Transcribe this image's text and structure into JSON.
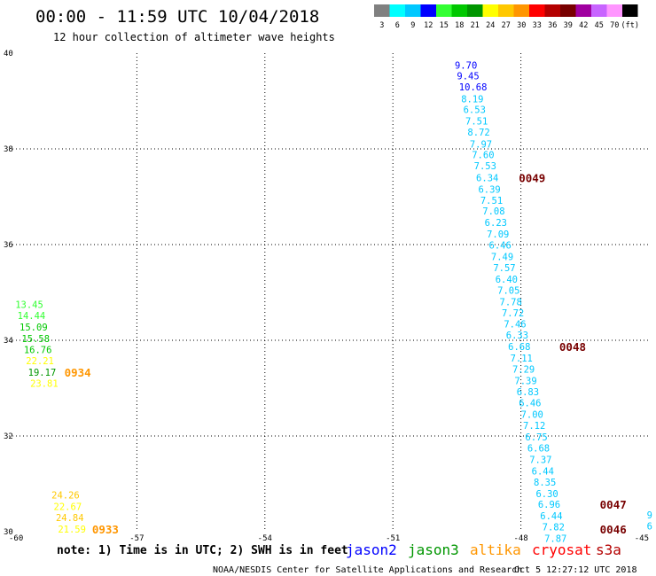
{
  "header": {
    "title": "00:00 - 11:59 UTC 10/04/2018",
    "subtitle": "12 hour collection of altimeter wave heights"
  },
  "color_scale": {
    "labels": [
      "3",
      "6",
      "9",
      "12",
      "15",
      "18",
      "21",
      "24",
      "27",
      "30",
      "33",
      "36",
      "39",
      "42",
      "45",
      "70",
      "(ft)"
    ],
    "colors": [
      "#808080",
      "#00ffff",
      "#00c8ff",
      "#0000ff",
      "#32ff32",
      "#00c800",
      "#009600",
      "#ffff00",
      "#ffc800",
      "#ff9600",
      "#ff0000",
      "#b40000",
      "#780000",
      "#a000a0",
      "#c864ff",
      "#ff96ff",
      "#000000"
    ]
  },
  "chart_data": {
    "type": "scatter",
    "title": "00:00 - 11:59 UTC 10/04/2018",
    "subtitle": "12 hour collection of altimeter wave heights",
    "xlim": [
      -60,
      -45
    ],
    "ylim": [
      30,
      40
    ],
    "x_ticks": [
      -60,
      -57,
      -54,
      -51,
      -48,
      -45
    ],
    "x_tick_labels": [
      "-60",
      "-57",
      "-54",
      "-51",
      "-48",
      "-45"
    ],
    "y_ticks": [
      30,
      32,
      34,
      36,
      38,
      40
    ],
    "y_tick_labels": [
      "30",
      "32",
      "34",
      "36",
      "38",
      "40"
    ],
    "grid": true,
    "units": "ft",
    "series": [
      {
        "name": "jason2",
        "points": [
          {
            "x": -49.55,
            "y": 39.75,
            "v": "9.70",
            "c": "#0000ff"
          },
          {
            "x": -49.5,
            "y": 39.53,
            "v": "9.45",
            "c": "#0000ff"
          },
          {
            "x": -49.45,
            "y": 39.3,
            "v": "10.68",
            "c": "#0000ff"
          },
          {
            "x": -49.4,
            "y": 39.05,
            "v": "8.19",
            "c": "#00c8ff"
          },
          {
            "x": -49.35,
            "y": 38.82,
            "v": "6.53",
            "c": "#00c8ff"
          },
          {
            "x": -49.3,
            "y": 38.58,
            "v": "7.51",
            "c": "#00c8ff"
          },
          {
            "x": -49.25,
            "y": 38.35,
            "v": "8.72",
            "c": "#00c8ff"
          },
          {
            "x": -49.2,
            "y": 38.1,
            "v": "7.97",
            "c": "#00c8ff"
          },
          {
            "x": -49.15,
            "y": 37.88,
            "v": "7.60",
            "c": "#00c8ff"
          },
          {
            "x": -49.1,
            "y": 37.65,
            "v": "7.53",
            "c": "#00c8ff"
          },
          {
            "x": -49.05,
            "y": 37.4,
            "v": "6.34",
            "c": "#00c8ff"
          },
          {
            "x": -49.0,
            "y": 37.16,
            "v": "6.39",
            "c": "#00c8ff"
          },
          {
            "x": -48.95,
            "y": 36.93,
            "v": "7.51",
            "c": "#00c8ff"
          },
          {
            "x": -48.9,
            "y": 36.7,
            "v": "7.08",
            "c": "#00c8ff"
          },
          {
            "x": -48.85,
            "y": 36.46,
            "v": "6.23",
            "c": "#00c8ff"
          },
          {
            "x": -48.8,
            "y": 36.22,
            "v": "7.09",
            "c": "#00c8ff"
          },
          {
            "x": -48.75,
            "y": 35.99,
            "v": "6.46",
            "c": "#00c8ff"
          },
          {
            "x": -48.7,
            "y": 35.75,
            "v": "7.49",
            "c": "#00c8ff"
          },
          {
            "x": -48.65,
            "y": 35.52,
            "v": "7.57",
            "c": "#00c8ff"
          },
          {
            "x": -48.6,
            "y": 35.28,
            "v": "6.40",
            "c": "#00c8ff"
          },
          {
            "x": -48.55,
            "y": 35.05,
            "v": "7.05",
            "c": "#00c8ff"
          },
          {
            "x": -48.5,
            "y": 34.81,
            "v": "7.78",
            "c": "#00c8ff"
          },
          {
            "x": -48.45,
            "y": 34.57,
            "v": "7.72",
            "c": "#00c8ff"
          },
          {
            "x": -48.4,
            "y": 34.34,
            "v": "7.46",
            "c": "#00c8ff"
          },
          {
            "x": -48.35,
            "y": 34.11,
            "v": "6.33",
            "c": "#00c8ff"
          },
          {
            "x": -48.3,
            "y": 33.87,
            "v": "6.68",
            "c": "#00c8ff"
          },
          {
            "x": -48.25,
            "y": 33.63,
            "v": "7.11",
            "c": "#00c8ff"
          },
          {
            "x": -48.2,
            "y": 33.4,
            "v": "7.29",
            "c": "#00c8ff"
          },
          {
            "x": -48.15,
            "y": 33.16,
            "v": "7.39",
            "c": "#00c8ff"
          },
          {
            "x": -48.1,
            "y": 32.93,
            "v": "6.83",
            "c": "#00c8ff"
          },
          {
            "x": -48.05,
            "y": 32.69,
            "v": "6.46",
            "c": "#00c8ff"
          },
          {
            "x": -48.0,
            "y": 32.45,
            "v": "7.00",
            "c": "#00c8ff"
          },
          {
            "x": -47.95,
            "y": 32.22,
            "v": "7.12",
            "c": "#00c8ff"
          },
          {
            "x": -47.9,
            "y": 31.98,
            "v": "6.75",
            "c": "#00c8ff"
          },
          {
            "x": -47.85,
            "y": 31.75,
            "v": "6.68",
            "c": "#00c8ff"
          },
          {
            "x": -47.8,
            "y": 31.51,
            "v": "7.37",
            "c": "#00c8ff"
          },
          {
            "x": -47.75,
            "y": 31.27,
            "v": "6.44",
            "c": "#00c8ff"
          },
          {
            "x": -47.7,
            "y": 31.04,
            "v": "8.35",
            "c": "#00c8ff"
          },
          {
            "x": -47.65,
            "y": 30.8,
            "v": "6.30",
            "c": "#00c8ff"
          },
          {
            "x": -47.6,
            "y": 30.57,
            "v": "6.96",
            "c": "#00c8ff"
          },
          {
            "x": -47.55,
            "y": 30.33,
            "v": "6.44",
            "c": "#00c8ff"
          },
          {
            "x": -47.5,
            "y": 30.1,
            "v": "7.82",
            "c": "#00c8ff"
          },
          {
            "x": -47.45,
            "y": 29.86,
            "v": "7.87",
            "c": "#00c8ff"
          }
        ]
      },
      {
        "name": "jason3",
        "points": [
          {
            "x": -59.85,
            "y": 34.75,
            "v": "13.45",
            "c": "#32ff32"
          },
          {
            "x": -59.8,
            "y": 34.52,
            "v": "14.44",
            "c": "#32ff32"
          },
          {
            "x": -59.75,
            "y": 34.28,
            "v": "15.09",
            "c": "#00c800"
          },
          {
            "x": -59.7,
            "y": 34.04,
            "v": "15.58",
            "c": "#00c800"
          },
          {
            "x": -59.65,
            "y": 33.81,
            "v": "16.76",
            "c": "#00c800"
          },
          {
            "x": -59.6,
            "y": 33.57,
            "v": "22.21",
            "c": "#ffff00"
          },
          {
            "x": -59.55,
            "y": 33.33,
            "v": "19.17",
            "c": "#009600"
          },
          {
            "x": -59.5,
            "y": 33.1,
            "v": "23.81",
            "c": "#ffff00"
          }
        ]
      },
      {
        "name": "altika",
        "points": [
          {
            "x": -59.0,
            "y": 30.77,
            "v": "24.26",
            "c": "#ffc800"
          },
          {
            "x": -58.95,
            "y": 30.53,
            "v": "22.67",
            "c": "#ffff00"
          },
          {
            "x": -58.9,
            "y": 30.3,
            "v": "24.84",
            "c": "#ffc800"
          },
          {
            "x": -58.85,
            "y": 30.06,
            "v": "21.59",
            "c": "#ffff00"
          }
        ]
      },
      {
        "name": "s3a",
        "points": [
          {
            "x": -45.05,
            "y": 30.35,
            "v": "9",
            "c": "#00c8ff"
          },
          {
            "x": -45.05,
            "y": 30.12,
            "v": "6",
            "c": "#00c8ff"
          }
        ]
      }
    ],
    "time_labels": [
      {
        "x": -48.05,
        "y": 37.4,
        "text": "0049",
        "c": "#780000"
      },
      {
        "x": -47.1,
        "y": 33.87,
        "text": "0048",
        "c": "#780000"
      },
      {
        "x": -46.15,
        "y": 30.57,
        "text": "0047",
        "c": "#780000"
      },
      {
        "x": -46.15,
        "y": 30.06,
        "text": "0046",
        "c": "#780000"
      },
      {
        "x": -58.7,
        "y": 33.33,
        "text": "0934",
        "c": "#ff9600"
      },
      {
        "x": -58.05,
        "y": 30.06,
        "text": "0933",
        "c": "#ff9600"
      }
    ]
  },
  "footer": {
    "note": "note: 1) Time is in UTC; 2) SWH is in feet",
    "legend": [
      {
        "name": "jason2",
        "color": "#0000ff"
      },
      {
        "name": "jason3",
        "color": "#009600"
      },
      {
        "name": "altika",
        "color": "#ff9600"
      },
      {
        "name": "cryosat",
        "color": "#ff0000"
      },
      {
        "name": "s3a",
        "color": "#b40000"
      }
    ],
    "credit": "NOAA/NESDIS Center for Satellite Applications and Research",
    "timestamp": "Oct  5 12:27:12 UTC 2018"
  }
}
